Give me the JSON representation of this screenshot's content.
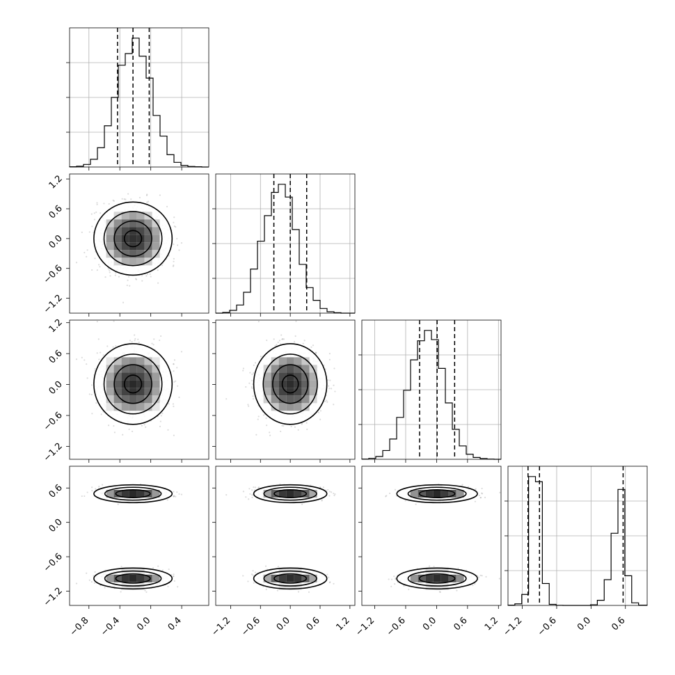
{
  "chart_data": {
    "type": "corner",
    "n_params": 4,
    "ranges": [
      [
        -1.05,
        0.75
      ],
      [
        -1.5,
        1.3
      ],
      [
        -1.45,
        1.25
      ],
      [
        -1.45,
        0.98
      ]
    ],
    "tick_values": [
      [
        -0.8,
        -0.4,
        0.0,
        0.4
      ],
      [
        -1.2,
        -0.6,
        0.0,
        0.6,
        1.2
      ],
      [
        -1.2,
        -0.6,
        0.0,
        0.6,
        1.2
      ],
      [
        -1.2,
        -0.6,
        0.0,
        0.6
      ]
    ],
    "tick_labels": [
      [
        "−0.8",
        "−0.4",
        "0.0",
        "0.4"
      ],
      [
        "−1.2",
        "−0.6",
        "0.0",
        "0.6",
        "1.2"
      ],
      [
        "−1.2",
        "−0.6",
        "0.0",
        "0.6",
        "1.2"
      ],
      [
        "−1.2",
        "−0.6",
        "0.0",
        "0.6"
      ]
    ],
    "quantiles": [
      [
        -0.43,
        -0.23,
        -0.02
      ],
      [
        -0.33,
        0.0,
        0.33
      ],
      [
        -0.33,
        0.01,
        0.35
      ],
      [
        -1.1,
        -0.9,
        0.56
      ]
    ],
    "marginals": [
      {
        "edges": [
          -1.05,
          -0.96,
          -0.87,
          -0.78,
          -0.69,
          -0.6,
          -0.51,
          -0.42,
          -0.33,
          -0.24,
          -0.15,
          -0.06,
          0.03,
          0.12,
          0.21,
          0.3,
          0.39,
          0.48,
          0.57,
          0.66,
          0.75
        ],
        "counts": [
          1,
          3,
          10,
          30,
          75,
          160,
          270,
          395,
          440,
          500,
          430,
          345,
          200,
          120,
          48,
          18,
          6,
          2,
          1,
          0
        ]
      },
      {
        "edges": [
          -1.5,
          -1.36,
          -1.22,
          -1.08,
          -0.94,
          -0.8,
          -0.66,
          -0.52,
          -0.38,
          -0.24,
          -0.1,
          0.04,
          0.18,
          0.32,
          0.46,
          0.6,
          0.74,
          0.88,
          1.02,
          1.16,
          1.3
        ],
        "counts": [
          0,
          3,
          12,
          35,
          90,
          190,
          310,
          420,
          520,
          555,
          500,
          360,
          210,
          110,
          55,
          20,
          6,
          2,
          0,
          0
        ]
      },
      {
        "edges": [
          -1.45,
          -1.315,
          -1.18,
          -1.045,
          -0.91,
          -0.775,
          -0.64,
          -0.505,
          -0.37,
          -0.235,
          -0.1,
          0.035,
          0.17,
          0.305,
          0.44,
          0.575,
          0.71,
          0.845,
          0.98,
          1.115,
          1.25
        ],
        "counts": [
          1,
          4,
          12,
          38,
          88,
          182,
          300,
          432,
          515,
          560,
          520,
          395,
          245,
          130,
          58,
          22,
          8,
          3,
          1,
          0
        ]
      },
      {
        "edges": [
          -1.45,
          -1.33,
          -1.21,
          -1.09,
          -0.97,
          -0.85,
          -0.73,
          -0.61,
          -0.49,
          -0.37,
          -0.25,
          -0.13,
          -0.01,
          0.11,
          0.23,
          0.35,
          0.47,
          0.59,
          0.71,
          0.83,
          0.98
        ],
        "counts": [
          2,
          12,
          85,
          1000,
          960,
          170,
          8,
          1,
          0,
          0,
          0,
          0,
          5,
          40,
          200,
          560,
          900,
          230,
          20,
          2
        ]
      }
    ],
    "joint_samples": {
      "n_points": 2200,
      "means": [
        -0.23,
        0.0,
        0.01
      ],
      "sigmas": [
        0.22,
        0.32,
        0.34
      ],
      "param4_modes": [
        {
          "mean": -0.98,
          "sigma": 0.07,
          "weight": 0.5
        },
        {
          "mean": 0.5,
          "sigma": 0.06,
          "weight": 0.5
        }
      ]
    }
  }
}
